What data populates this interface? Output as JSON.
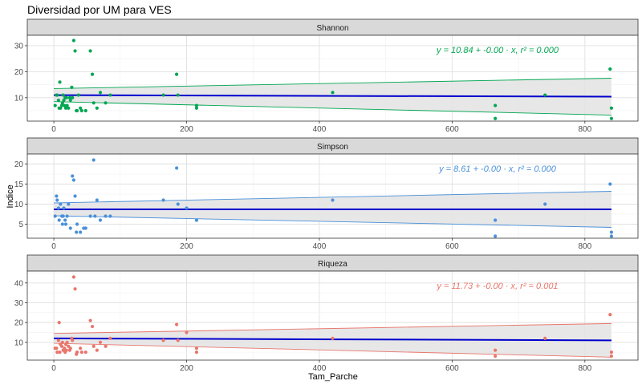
{
  "title": "Diversidad por UM para VES",
  "chart_data": {
    "type": "scatter",
    "title": "Diversidad por UM para VES",
    "xlabel": "Tam_Parche",
    "ylabel": "Indice",
    "xlim": [
      -40,
      880
    ],
    "x_ticks": [
      "0",
      "200",
      "400",
      "600",
      "800"
    ],
    "grid": true,
    "regression_line_color": "#0000cd",
    "band_fill": "#e3e3e3",
    "panels": [
      {
        "name": "Shannon",
        "color": "#00a651",
        "equation": "y = 10.84 + -0.00 · x,  r² = 0.000",
        "ylim": [
          1,
          34
        ],
        "y_ticks": [
          10,
          20,
          30
        ],
        "fit": {
          "x": [
            0,
            840
          ],
          "y": [
            11.0,
            10.4
          ]
        },
        "band": {
          "x": [
            0,
            840
          ],
          "upper": [
            13.5,
            17.5
          ],
          "lower": [
            8.5,
            3.3
          ]
        },
        "points": {
          "x": [
            2,
            4,
            5,
            7,
            8,
            9,
            10,
            12,
            13,
            14,
            15,
            16,
            17,
            18,
            19,
            20,
            22,
            24,
            25,
            27,
            28,
            30,
            32,
            34,
            35,
            37,
            40,
            42,
            48,
            55,
            58,
            60,
            65,
            70,
            78,
            85,
            165,
            185,
            187,
            215,
            215,
            420,
            665,
            665,
            740,
            838,
            840,
            840
          ],
          "y": [
            7,
            11,
            11,
            9,
            6,
            16,
            6,
            7,
            8,
            11,
            9,
            7,
            10,
            6,
            10,
            7,
            6,
            10,
            9,
            14,
            10,
            32,
            28,
            5,
            5,
            11,
            6,
            5,
            5,
            28,
            19,
            8,
            6,
            12,
            8,
            11,
            11,
            19,
            11,
            7,
            6,
            12,
            7,
            2,
            11,
            21,
            6,
            2
          ]
        }
      },
      {
        "name": "Simpson",
        "color": "#4a90d9",
        "equation": "y = 8.61 + -0.00 · x,  r² = 0.000",
        "ylim": [
          1.5,
          22.5
        ],
        "y_ticks": [
          5,
          10,
          15,
          20
        ],
        "fit": {
          "x": [
            0,
            840
          ],
          "y": [
            8.7,
            8.7
          ]
        },
        "band": {
          "x": [
            0,
            840
          ],
          "upper": [
            10.3,
            13.2
          ],
          "lower": [
            7.1,
            4.2
          ]
        },
        "points": {
          "x": [
            2,
            4,
            5,
            7,
            8,
            10,
            12,
            13,
            14,
            15,
            17,
            18,
            20,
            22,
            25,
            28,
            30,
            32,
            34,
            35,
            40,
            45,
            48,
            55,
            60,
            62,
            65,
            70,
            78,
            85,
            165,
            185,
            187,
            200,
            215,
            215,
            420,
            665,
            665,
            740,
            838,
            840,
            840
          ],
          "y": [
            7,
            12,
            11,
            9,
            6,
            10,
            7,
            5,
            7,
            9,
            6,
            5,
            7,
            10,
            4,
            17,
            16,
            12,
            3,
            5,
            3,
            4,
            4,
            7,
            21,
            7,
            11,
            6,
            7,
            7,
            11,
            19,
            10,
            9,
            6,
            6,
            11,
            6,
            2,
            10,
            15,
            3,
            2
          ]
        }
      },
      {
        "name": "Riqueza",
        "color": "#e8766d",
        "equation": "y = 11.73 + -0.00 · x,  r² = 0.001",
        "ylim": [
          1,
          46
        ],
        "y_ticks": [
          10,
          20,
          30,
          40
        ],
        "fit": {
          "x": [
            0,
            840
          ],
          "y": [
            12.0,
            11.0
          ]
        },
        "band": {
          "x": [
            0,
            840
          ],
          "upper": [
            14.5,
            19.5
          ],
          "lower": [
            9.5,
            2.5
          ]
        },
        "points": {
          "x": [
            2,
            4,
            5,
            7,
            8,
            9,
            10,
            12,
            13,
            14,
            15,
            16,
            17,
            18,
            19,
            20,
            22,
            24,
            25,
            27,
            28,
            30,
            32,
            34,
            35,
            40,
            42,
            48,
            55,
            58,
            60,
            65,
            70,
            78,
            85,
            165,
            185,
            187,
            200,
            215,
            215,
            420,
            665,
            665,
            740,
            838,
            840,
            840
          ],
          "y": [
            7,
            7,
            5,
            11,
            20,
            5,
            9,
            8,
            10,
            6,
            6,
            7,
            5,
            9,
            6,
            10,
            8,
            6,
            7,
            12,
            11,
            43,
            37,
            4,
            5,
            7,
            5,
            5,
            21,
            18,
            8,
            6,
            10,
            8,
            12,
            11,
            19,
            11,
            15,
            7,
            5,
            12,
            6,
            3,
            12,
            24,
            5,
            3
          ]
        }
      }
    ]
  }
}
